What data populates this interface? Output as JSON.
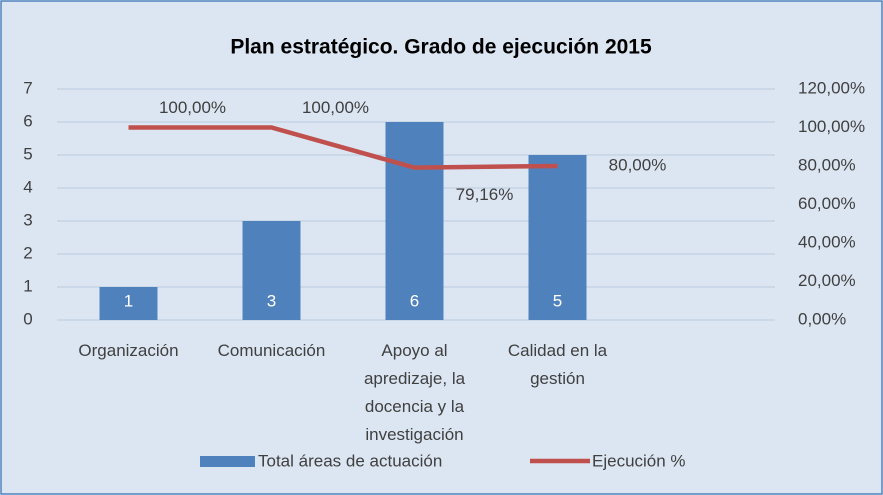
{
  "chart_data": {
    "type": "bar+line",
    "title": "Plan estratégico. Grado de ejecución 2015",
    "categories": [
      "Organización",
      "Comunicación",
      "Apoyo al apredizaje, la docencia y la investigación",
      "Calidad en la gestión"
    ],
    "series": [
      {
        "name": "Total áreas de actuación",
        "type": "bar",
        "color": "#4f81bd",
        "values": [
          1,
          3,
          6,
          5
        ]
      },
      {
        "name": "Ejecución %",
        "type": "line",
        "axis": "y2",
        "color": "#c0504d",
        "values": [
          100,
          100,
          79.16,
          80
        ],
        "value_labels": [
          "100,00%",
          "100,00%",
          "79,16%",
          "80,00%"
        ]
      }
    ],
    "ylim": [
      0,
      7
    ],
    "yticks": [
      0,
      1,
      2,
      3,
      4,
      5,
      6,
      7
    ],
    "y2lim": [
      0,
      120
    ],
    "y2ticks": [
      {
        "value": 0,
        "label": "0,00%"
      },
      {
        "value": 20,
        "label": "20,00%"
      },
      {
        "value": 40,
        "label": "40,00%"
      },
      {
        "value": 60,
        "label": "60,00%"
      },
      {
        "value": 80,
        "label": "80,00%"
      },
      {
        "value": 100,
        "label": "100,00%"
      },
      {
        "value": 120,
        "label": "120,00%"
      }
    ],
    "grid": true,
    "legend": "bottom"
  }
}
